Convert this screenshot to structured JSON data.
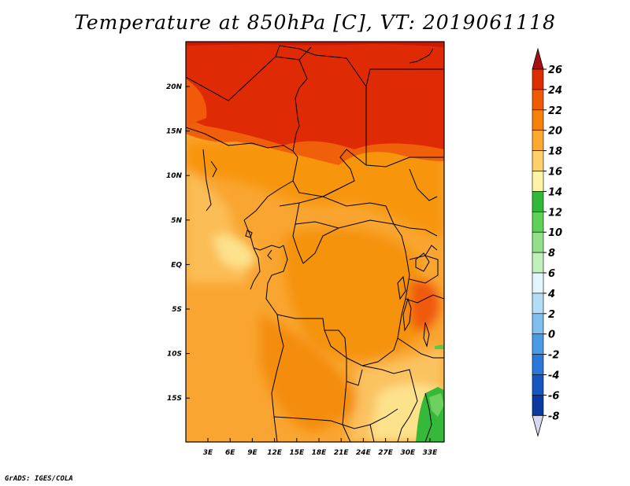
{
  "title": "Temperature at 850hPa [C], VT: 2019061118",
  "credit": "GrADS: IGES/COLA",
  "map": {
    "lon_labels": [
      "3E",
      "6E",
      "9E",
      "12E",
      "15E",
      "18E",
      "21E",
      "24E",
      "27E",
      "30E",
      "33E"
    ],
    "lat_labels": [
      "20N",
      "15N",
      "10N",
      "5N",
      "EQ",
      "5S",
      "10S",
      "15S"
    ]
  },
  "colorbar": {
    "labels": [
      "26",
      "24",
      "22",
      "20",
      "18",
      "16",
      "14",
      "12",
      "10",
      "8",
      "6",
      "4",
      "2",
      "0",
      "-2",
      "-4",
      "-6",
      "-8"
    ],
    "colors": [
      "#a50f15",
      "#de2d05",
      "#f05a05",
      "#f7820a",
      "#fbaa2f",
      "#fdd06b",
      "#fff3a8",
      "#2fb83a",
      "#5fd15a",
      "#93e08a",
      "#c2f0bb",
      "#e1f5fe",
      "#b3dcf7",
      "#7fbff0",
      "#4a9be6",
      "#2a78d8",
      "#1457c0",
      "#0a3aa0",
      "#051e78"
    ]
  }
}
